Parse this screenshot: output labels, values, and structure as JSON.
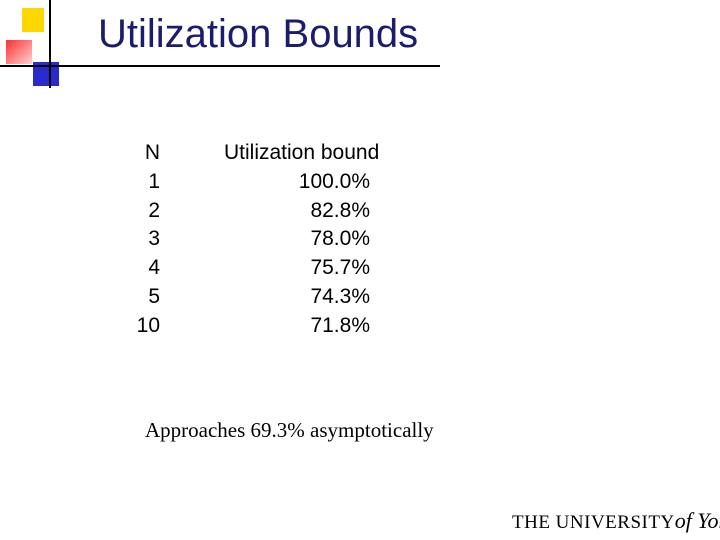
{
  "header": {
    "title": "Utilization Bounds"
  },
  "table": {
    "columns": [
      "N",
      "Utilization bound"
    ],
    "rows": [
      [
        "1",
        "100.0%"
      ],
      [
        "2",
        "82.8%"
      ],
      [
        "3",
        "78.0%"
      ],
      [
        "4",
        "75.7%"
      ],
      [
        "5",
        "74.3%"
      ],
      [
        "10",
        "71.8%"
      ]
    ]
  },
  "note": "Approaches 69.3% asymptotically",
  "logo": {
    "name": "THE UNIVERSITY",
    "place": "of York"
  }
}
